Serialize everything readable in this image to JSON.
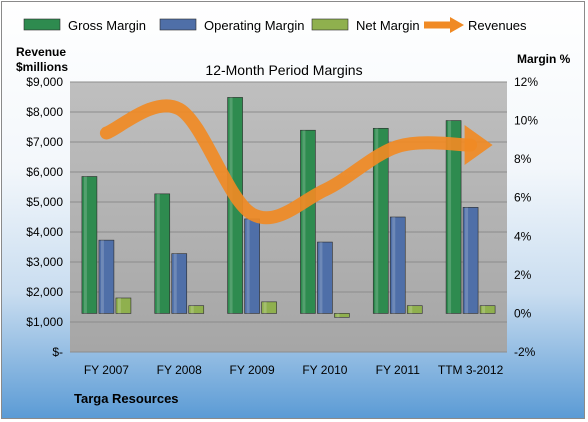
{
  "chart_data": {
    "type": "bar",
    "title": "12-Month Period Margins",
    "footer_label": "Targa Resources",
    "y_left_title": [
      "Revenue",
      "$millions"
    ],
    "y_right_title": "Margin %",
    "categories": [
      "FY 2007",
      "FY 2008",
      "FY 2009",
      "FY 2010",
      "FY 2011",
      "TTM 3-2012"
    ],
    "left_axis": {
      "min": 0,
      "max": 9000,
      "ticks": [
        0,
        1000,
        2000,
        3000,
        4000,
        5000,
        6000,
        7000,
        8000,
        9000
      ],
      "tick_labels": [
        "$-",
        "$1,000",
        "$2,000",
        "$3,000",
        "$4,000",
        "$5,000",
        "$6,000",
        "$7,000",
        "$8,000",
        "$9,000"
      ]
    },
    "right_axis": {
      "min": -2,
      "max": 12,
      "ticks": [
        -2,
        0,
        2,
        4,
        6,
        8,
        10,
        12
      ],
      "tick_labels": [
        "-2%",
        "0%",
        "2%",
        "4%",
        "6%",
        "8%",
        "10%",
        "12%"
      ]
    },
    "series": [
      {
        "name": "Gross Margin",
        "kind": "bar",
        "axis": "right",
        "color": "#2e8b4f",
        "values": [
          7.1,
          6.2,
          11.2,
          9.5,
          9.6,
          10.0
        ]
      },
      {
        "name": "Operating Margin",
        "kind": "bar",
        "axis": "right",
        "color": "#4f6fa8",
        "values": [
          3.8,
          3.1,
          4.9,
          3.7,
          5.0,
          5.5
        ]
      },
      {
        "name": "Net Margin",
        "kind": "bar",
        "axis": "right",
        "color": "#8fb04e",
        "values": [
          0.8,
          0.4,
          0.6,
          -0.2,
          0.4,
          0.4
        ]
      },
      {
        "name": "Revenues",
        "kind": "line",
        "axis": "left",
        "color": "#f08a24",
        "values": [
          7300,
          8100,
          4600,
          5400,
          6850,
          6900
        ]
      }
    ],
    "legend_position": "top",
    "grid": true
  }
}
